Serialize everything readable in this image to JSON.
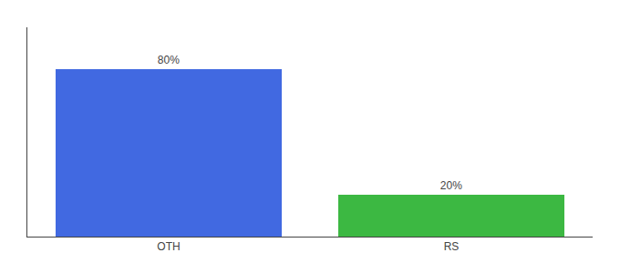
{
  "chart_data": {
    "type": "bar",
    "categories": [
      "OTH",
      "RS"
    ],
    "values": [
      80,
      20
    ],
    "value_labels": [
      "80%",
      "20%"
    ],
    "colors": [
      "#4169E1",
      "#3CB842"
    ],
    "ylim": [
      0,
      100
    ],
    "data_labels": true,
    "tick_labels": "x",
    "grid": false
  }
}
